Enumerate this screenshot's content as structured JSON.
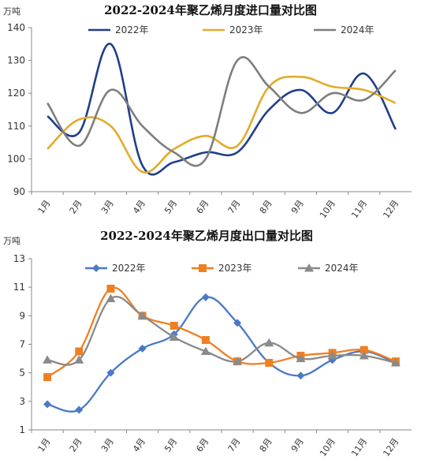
{
  "colors": {
    "s2022": "#1f3f8a",
    "s2023": "#e3ab2a",
    "s2024": "#7e7e7e",
    "m2022": "#4a79c7",
    "m2023": "#f07f22",
    "m2024": "#8a8a8a"
  },
  "chart_data": [
    {
      "type": "line",
      "title": "2022-2024年聚乙烯月度进口量对比图",
      "ylabel": "万吨",
      "xlabel": "",
      "categories": [
        "1月",
        "2月",
        "3月",
        "4月",
        "5月",
        "6月",
        "7月",
        "8月",
        "9月",
        "10月",
        "11月",
        "12月"
      ],
      "yticks": [
        "90",
        "100",
        "110",
        "120",
        "130",
        "140"
      ],
      "ylim": [
        90,
        140
      ],
      "legend_position": "top",
      "grid": false,
      "series": [
        {
          "name": "2022年",
          "values": [
            113,
            108,
            135,
            98,
            99,
            102,
            102,
            115,
            121,
            114,
            126,
            109
          ]
        },
        {
          "name": "2023年",
          "values": [
            103,
            112,
            110,
            96,
            103,
            107,
            104,
            122,
            125,
            122,
            121,
            117
          ]
        },
        {
          "name": "2024年",
          "values": [
            117,
            104,
            121,
            110,
            102,
            100,
            130,
            122,
            114,
            120,
            118,
            127
          ]
        }
      ]
    },
    {
      "type": "line",
      "title": "2022-2024年聚乙烯月度出口量对比图",
      "ylabel": "万吨",
      "xlabel": "",
      "categories": [
        "1月",
        "2月",
        "3月",
        "4月",
        "5月",
        "6月",
        "7月",
        "8月",
        "9月",
        "10月",
        "11月",
        "12月"
      ],
      "yticks": [
        "1",
        "3",
        "5",
        "7",
        "9",
        "11",
        "13"
      ],
      "ylim": [
        1,
        13
      ],
      "legend_position": "top",
      "grid": false,
      "series": [
        {
          "name": "2022年",
          "values": [
            2.8,
            2.4,
            5.0,
            6.7,
            7.7,
            10.3,
            8.5,
            5.7,
            4.8,
            5.9,
            6.5,
            5.7
          ]
        },
        {
          "name": "2023年",
          "values": [
            4.7,
            6.5,
            10.9,
            9.0,
            8.3,
            7.3,
            5.8,
            5.7,
            6.2,
            6.4,
            6.6,
            5.8
          ]
        },
        {
          "name": "2024年",
          "values": [
            5.9,
            5.9,
            10.2,
            9.0,
            7.5,
            6.5,
            5.8,
            7.1,
            6.0,
            6.2,
            6.2,
            5.7
          ]
        }
      ]
    }
  ]
}
